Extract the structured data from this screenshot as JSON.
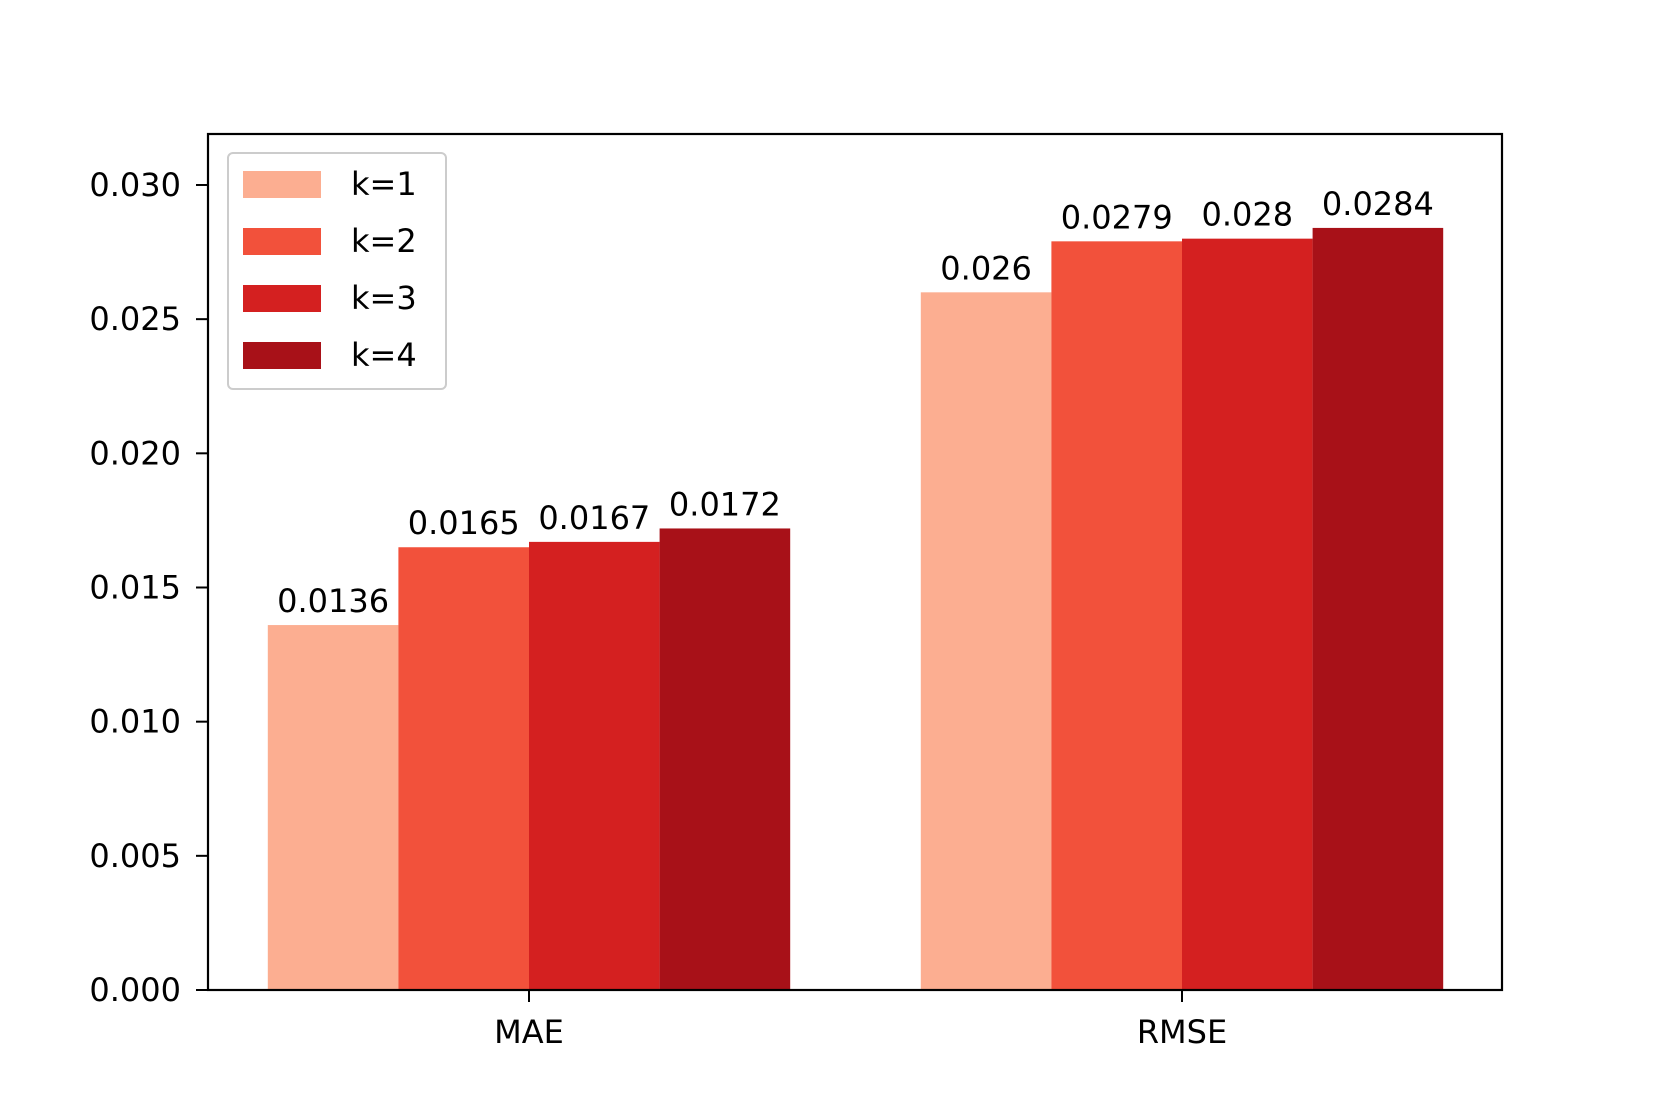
{
  "chart_data": {
    "type": "bar",
    "categories": [
      "MAE",
      "RMSE"
    ],
    "series": [
      {
        "name": "k=1",
        "values": [
          0.0136,
          0.026
        ],
        "labels": [
          "0.0136",
          "0.026"
        ],
        "color": "#fcae91"
      },
      {
        "name": "k=2",
        "values": [
          0.0165,
          0.0279
        ],
        "labels": [
          "0.0165",
          "0.0279"
        ],
        "color": "#f2513b"
      },
      {
        "name": "k=3",
        "values": [
          0.0167,
          0.028
        ],
        "labels": [
          "0.0167",
          "0.028"
        ],
        "color": "#d42020"
      },
      {
        "name": "k=4",
        "values": [
          0.0172,
          0.0284
        ],
        "labels": [
          "0.0172",
          "0.0284"
        ],
        "color": "#a81118"
      }
    ],
    "ylim": [
      0,
      0.0319
    ],
    "yticks": [
      "0.000",
      "0.005",
      "0.010",
      "0.015",
      "0.020",
      "0.025",
      "0.030"
    ],
    "ytick_values": [
      0,
      0.005,
      0.01,
      0.015,
      0.02,
      0.025,
      0.03
    ],
    "grid": false,
    "legend_position": "upper-left"
  }
}
